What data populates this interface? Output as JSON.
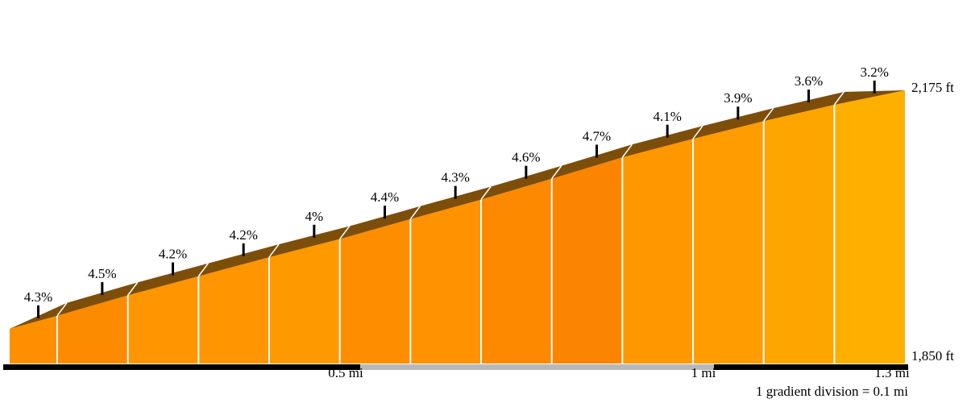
{
  "chart_data": {
    "type": "area",
    "subtype": "climb-gradient-profile",
    "title": "",
    "xlabel": "",
    "ylabel": "",
    "total_distance_mi": 1.3,
    "gradient_division_mi": 0.1,
    "segments": [
      {
        "gradient_label": "4.3%",
        "gradient_pct": 4.3,
        "color": "#fe9000"
      },
      {
        "gradient_label": "4.5%",
        "gradient_pct": 4.5,
        "color": "#fc8b00"
      },
      {
        "gradient_label": "4.2%",
        "gradient_pct": 4.2,
        "color": "#ff9500"
      },
      {
        "gradient_label": "4.2%",
        "gradient_pct": 4.2,
        "color": "#ff9500"
      },
      {
        "gradient_label": "4%",
        "gradient_pct": 4.0,
        "color": "#ff9900"
      },
      {
        "gradient_label": "4.4%",
        "gradient_pct": 4.4,
        "color": "#fe8e00"
      },
      {
        "gradient_label": "4.3%",
        "gradient_pct": 4.3,
        "color": "#ff9200"
      },
      {
        "gradient_label": "4.6%",
        "gradient_pct": 4.6,
        "color": "#fc8900"
      },
      {
        "gradient_label": "4.7%",
        "gradient_pct": 4.7,
        "color": "#fb8500"
      },
      {
        "gradient_label": "4.1%",
        "gradient_pct": 4.1,
        "color": "#ff9700"
      },
      {
        "gradient_label": "3.9%",
        "gradient_pct": 3.9,
        "color": "#ff9c00"
      },
      {
        "gradient_label": "3.6%",
        "gradient_pct": 3.6,
        "color": "#ffa500"
      },
      {
        "gradient_label": "3.2%",
        "gradient_pct": 3.2,
        "color": "#ffaf00"
      }
    ],
    "elevation": {
      "base_label": "1,850 ft",
      "summit_label": "2,175 ft",
      "base_ft": 1850,
      "summit_ft": 2175
    },
    "distance_axis": {
      "tick_labels": [
        "0.5 mi",
        "1 mi",
        "1.3 mi"
      ],
      "bar_colors": [
        "#000000",
        "#b8b8b8",
        "#000000"
      ]
    },
    "footnote": "1 gradient division = 0.1 mi",
    "ridge_color": "#7d4e0a",
    "divider_color": "#ffffff",
    "tick_color": "#000000",
    "label_color": "#000000"
  }
}
